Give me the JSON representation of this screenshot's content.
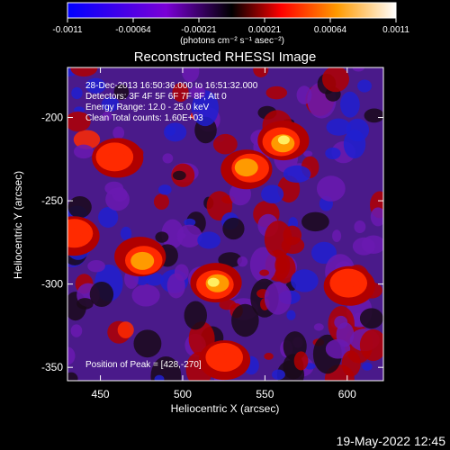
{
  "colorbar": {
    "ticks": [
      "-0.0011",
      "-0.00064",
      "-0.00021",
      "0.00021",
      "0.00064",
      "0.0011"
    ],
    "units_label": "(photons cm⁻² s⁻¹ asec⁻²)"
  },
  "timestamp": "19-May-2022 12:45",
  "chart_data": {
    "type": "heatmap",
    "title": "Reconstructed RHESSI Image",
    "xlabel": "Heliocentric X (arcsec)",
    "ylabel": "Heliocentric Y (arcsec)",
    "xlim": [
      430,
      622
    ],
    "ylim": [
      -358,
      -170
    ],
    "x_ticks": [
      "450",
      "500",
      "550",
      "600"
    ],
    "y_ticks": [
      "-200",
      "-250",
      "-300",
      "-350"
    ],
    "colorscale_range": [
      -0.0011,
      0.0011
    ],
    "colorscale": [
      "#0000ff",
      "#7a00d6",
      "#3b0b3b",
      "#ff0000",
      "#ff8c00",
      "#ffff70",
      "#ffffff"
    ],
    "annotations": [
      "28-Dec-2013 16:50:36.000 to 16:51:32.000",
      "Detectors: 3F 4F 5F 6F 7F 8F, Att 0",
      "Energy Range: 12.0 - 25.0 keV",
      "Clean     Total counts: 1.60E+03"
    ],
    "peak_label": "Position of Peak = [428,-270]",
    "bright_sources": [
      {
        "x": 520,
        "y": -300,
        "level": 0.95
      },
      {
        "x": 475,
        "y": -285,
        "level": 0.8
      },
      {
        "x": 560,
        "y": -215,
        "level": 0.85
      },
      {
        "x": 540,
        "y": -230,
        "level": 0.75
      },
      {
        "x": 460,
        "y": -225,
        "level": 0.7
      },
      {
        "x": 600,
        "y": -300,
        "level": 0.65
      },
      {
        "x": 525,
        "y": -345,
        "level": 0.7
      },
      {
        "x": 435,
        "y": -270,
        "level": 0.7
      }
    ]
  }
}
